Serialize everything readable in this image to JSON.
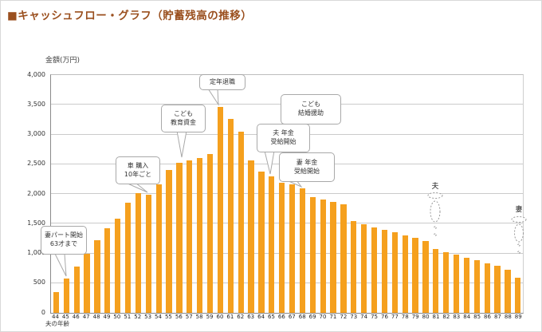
{
  "window": {
    "title": "■キャッシュフロー・グラフ（貯蓄残高の推移）"
  },
  "colors": {
    "title": "#9a4f1e",
    "bar": "#f5a01e",
    "grid": "#cbcbcb",
    "axis": "#8a8a8a",
    "callout_border": "#a9a9a9",
    "marker_dash": "#9a9a9a",
    "text": "#333333"
  },
  "chart_data": {
    "type": "bar",
    "title": "キャッシュフロー・グラフ（貯蓄残高の推移）",
    "ylabel": "金額(万円)",
    "xlabel": "夫の年齢",
    "ylim": [
      0,
      4000
    ],
    "ytick_step": 500,
    "ytick_labels": [
      "0",
      "500",
      "1,000",
      "1,500",
      "2,000",
      "2,500",
      "3,000",
      "3,500",
      "4,000"
    ],
    "grid": true,
    "legend": false,
    "categories": [
      44,
      45,
      46,
      47,
      48,
      49,
      50,
      51,
      52,
      53,
      54,
      55,
      56,
      57,
      58,
      59,
      60,
      61,
      62,
      63,
      64,
      65,
      66,
      67,
      68,
      69,
      70,
      71,
      72,
      73,
      74,
      75,
      76,
      77,
      78,
      79,
      80,
      81,
      82,
      83,
      84,
      85,
      86,
      87,
      88,
      89
    ],
    "values": [
      350,
      580,
      780,
      990,
      1220,
      1420,
      1590,
      1850,
      2020,
      1990,
      2160,
      2400,
      2520,
      2560,
      2610,
      2670,
      3470,
      3260,
      3050,
      2570,
      2380,
      2290,
      2190,
      2160,
      2090,
      1950,
      1910,
      1860,
      1820,
      1540,
      1490,
      1440,
      1390,
      1350,
      1300,
      1260,
      1210,
      1070,
      1020,
      980,
      930,
      880,
      830,
      790,
      730,
      590
    ],
    "annotations": [
      {
        "name": "wife-part-start",
        "lines": [
          "妻パート開始",
          "63才まで"
        ],
        "target_age": 45
      },
      {
        "name": "car-purchase",
        "lines": [
          "車 購入",
          "10年ごと"
        ],
        "target_age": 53
      },
      {
        "name": "child-education",
        "lines": [
          "こども",
          "教育資金"
        ],
        "target_age": 56
      },
      {
        "name": "retirement",
        "lines": [
          "定年退職"
        ],
        "target_age": 60
      },
      {
        "name": "child-marriage",
        "lines": [
          "こども",
          "結婚援助"
        ],
        "target_age": 63
      },
      {
        "name": "husband-pension",
        "lines": [
          "夫 年金",
          "受給開始"
        ],
        "target_age": 65
      },
      {
        "name": "wife-pension",
        "lines": [
          "妻 年金",
          "受給開始"
        ],
        "target_age": 68
      }
    ],
    "markers": [
      {
        "name": "husband",
        "label": "夫",
        "age": 81
      },
      {
        "name": "wife",
        "label": "妻",
        "age": 89
      }
    ]
  }
}
